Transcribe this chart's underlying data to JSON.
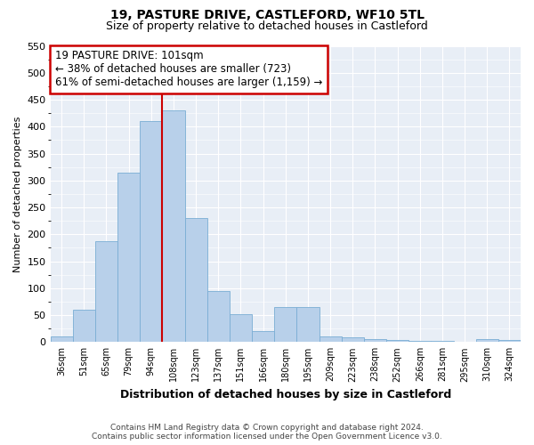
{
  "title": "19, PASTURE DRIVE, CASTLEFORD, WF10 5TL",
  "subtitle": "Size of property relative to detached houses in Castleford",
  "xlabel": "Distribution of detached houses by size in Castleford",
  "ylabel": "Number of detached properties",
  "categories": [
    "36sqm",
    "51sqm",
    "65sqm",
    "79sqm",
    "94sqm",
    "108sqm",
    "123sqm",
    "137sqm",
    "151sqm",
    "166sqm",
    "180sqm",
    "195sqm",
    "209sqm",
    "223sqm",
    "238sqm",
    "252sqm",
    "266sqm",
    "281sqm",
    "295sqm",
    "310sqm",
    "324sqm"
  ],
  "values": [
    10,
    60,
    188,
    315,
    410,
    430,
    230,
    95,
    52,
    20,
    65,
    65,
    10,
    8,
    5,
    3,
    2,
    2,
    0,
    5,
    3
  ],
  "bar_color": "#b8d0ea",
  "bar_edge_color": "#7aadd4",
  "annotation_line1": "19 PASTURE DRIVE: 101sqm",
  "annotation_line2": "← 38% of detached houses are smaller (723)",
  "annotation_line3": "61% of semi-detached houses are larger (1,159) →",
  "annotation_box_color": "#ffffff",
  "annotation_box_edge_color": "#cc0000",
  "vline_color": "#cc0000",
  "ylim": [
    0,
    550
  ],
  "yticks": [
    0,
    50,
    100,
    150,
    200,
    250,
    300,
    350,
    400,
    450,
    500,
    550
  ],
  "background_color": "#e8eef6",
  "footer_line1": "Contains HM Land Registry data © Crown copyright and database right 2024.",
  "footer_line2": "Contains public sector information licensed under the Open Government Licence v3.0."
}
